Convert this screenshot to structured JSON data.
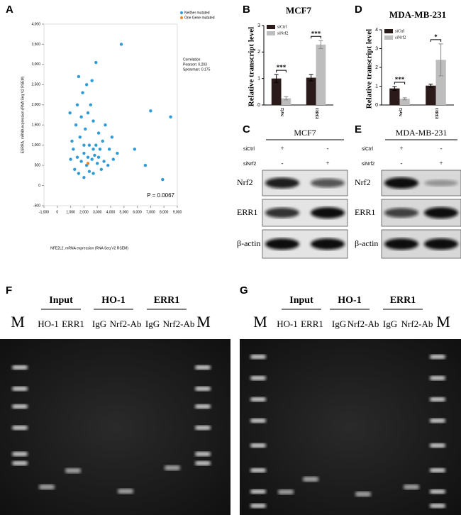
{
  "panel_labels": [
    "A",
    "B",
    "C",
    "D",
    "E",
    "F",
    "G"
  ],
  "chart_data": [
    {
      "type": "scatter",
      "xlabel": "NFE2L2, mRNA expression (RNA Seq V2 RSEM)",
      "ylabel": "ESRRA, mRNA expression (RNA Seq V2 RSEM)",
      "annotations": [
        "Correlation",
        "Pearson: 0.203",
        "Spearman: 0.175",
        "P = 0.0067"
      ],
      "xlim": [
        -1000,
        9000
      ],
      "ylim": [
        -500,
        4000
      ],
      "xticks": [
        {
          "value": -1000,
          "label": "-1,000"
        },
        0,
        {
          "value": 1000,
          "label": "1,000"
        },
        {
          "value": 2000,
          "label": "2,000"
        },
        {
          "value": 3000,
          "label": "3,000"
        },
        {
          "value": 4000,
          "label": "4,000"
        },
        {
          "value": 5000,
          "label": "5,000"
        },
        {
          "value": 6000,
          "label": "6,000"
        },
        {
          "value": 7000,
          "label": "7,000"
        },
        {
          "value": 8000,
          "label": "8,000"
        },
        {
          "value": 9000,
          "label": "9,000"
        }
      ],
      "yticks": [
        -500,
        0,
        500,
        {
          "value": 1000,
          "label": "1,000"
        },
        {
          "value": 1500,
          "label": "1,500"
        },
        {
          "value": 2000,
          "label": "2,000"
        },
        {
          "value": 2500,
          "label": "2,500"
        },
        {
          "value": 3000,
          "label": "3,000"
        },
        {
          "value": 3500,
          "label": "3,500"
        },
        {
          "value": 4000,
          "label": "4,000"
        }
      ],
      "series": [
        {
          "name": "Neither mutated",
          "color": "#2e9bd6",
          "x": [
            1200,
            1500,
            1800,
            2000,
            2200,
            2400,
            2600,
            2800,
            3000,
            3200,
            3500,
            1700,
            2100,
            2300,
            2500,
            1900,
            2600,
            1300,
            1600,
            2000,
            2700,
            3300,
            3800,
            4200,
            4500,
            1100,
            1400,
            1800,
            2200,
            2700,
            3100,
            3400,
            3900,
            4100,
            2900,
            2400,
            1000,
            950,
            1600,
            3600,
            1500,
            2000,
            2300,
            2700,
            3100,
            5800,
            6600,
            7900,
            7000,
            8500,
            4800,
            2900
          ],
          "y": [
            900,
            700,
            600,
            800,
            500,
            1000,
            650,
            750,
            550,
            900,
            600,
            1200,
            1400,
            1800,
            2000,
            2300,
            2600,
            400,
            300,
            200,
            300,
            400,
            500,
            650,
            800,
            1100,
            1500,
            1700,
            2500,
            1600,
            1300,
            1100,
            900,
            1200,
            1000,
            350,
            650,
            1800,
            2700,
            1500,
            2000,
            1000,
            700,
            900,
            700,
            900,
            500,
            150,
            1850,
            1700,
            3500,
            3050
          ]
        },
        {
          "name": "One Gene mutated",
          "color": "#e8862a",
          "x": [
            2300
          ],
          "y": [
            550
          ]
        }
      ]
    },
    {
      "type": "bar",
      "title": "MCF7",
      "ylabel": "Relative transcript level",
      "categories": [
        "Nrf2",
        "ERR1"
      ],
      "ylim": [
        0,
        3
      ],
      "yticks": [
        0,
        1,
        2,
        3
      ],
      "series": [
        {
          "name": "siCtrl",
          "color": "#2a1a1a",
          "values": [
            1.0,
            1.03
          ],
          "errors": [
            0.15,
            0.12
          ]
        },
        {
          "name": "siNrf2",
          "color": "#bdbdbd",
          "values": [
            0.25,
            2.28
          ],
          "errors": [
            0.06,
            0.15
          ]
        }
      ],
      "significance": [
        "***",
        "***"
      ]
    },
    {
      "type": "bar",
      "title": "MDA-MB-231",
      "ylabel": "Relative transcript level",
      "categories": [
        "Nrf2",
        "ERR1"
      ],
      "ylim": [
        0,
        4
      ],
      "yticks": [
        0,
        1,
        2,
        3,
        4
      ],
      "series": [
        {
          "name": "siCtrl",
          "color": "#2a1a1a",
          "values": [
            0.88,
            1.03
          ],
          "errors": [
            0.1,
            0.08
          ]
        },
        {
          "name": "siNrf2",
          "color": "#bdbdbd",
          "values": [
            0.33,
            2.4
          ],
          "errors": [
            0.05,
            0.85
          ]
        }
      ],
      "significance": [
        "***",
        "*"
      ]
    }
  ],
  "blots": [
    {
      "title": "MCF7",
      "conditions": [
        "siCtrl",
        "siNrf2"
      ],
      "signs": [
        [
          "+",
          "-"
        ],
        [
          "-",
          "+"
        ]
      ],
      "rows": [
        "Nrf2",
        "ERR1",
        "β-actin"
      ]
    },
    {
      "title": "MDA-MB-231",
      "conditions": [
        "siCtrl",
        "siNrf2"
      ],
      "signs": [
        [
          "+",
          "-"
        ],
        [
          "-",
          "+"
        ]
      ],
      "rows": [
        "Nrf2",
        "ERR1",
        "β-actin"
      ]
    }
  ],
  "gels": [
    {
      "marker": "M",
      "groups": [
        "Input",
        "HO-1",
        "ERR1"
      ],
      "lanes": [
        "HO-1",
        "ERR1",
        "IgG",
        "Nrf2-Ab",
        "IgG",
        "Nrf2-Ab"
      ]
    },
    {
      "marker": "M",
      "groups": [
        "Input",
        "HO-1",
        "ERR1"
      ],
      "lanes": [
        "HO-1",
        "ERR1",
        "IgG",
        "Nrf2-Ab",
        "IgG",
        "Nrf2-Ab"
      ]
    }
  ]
}
